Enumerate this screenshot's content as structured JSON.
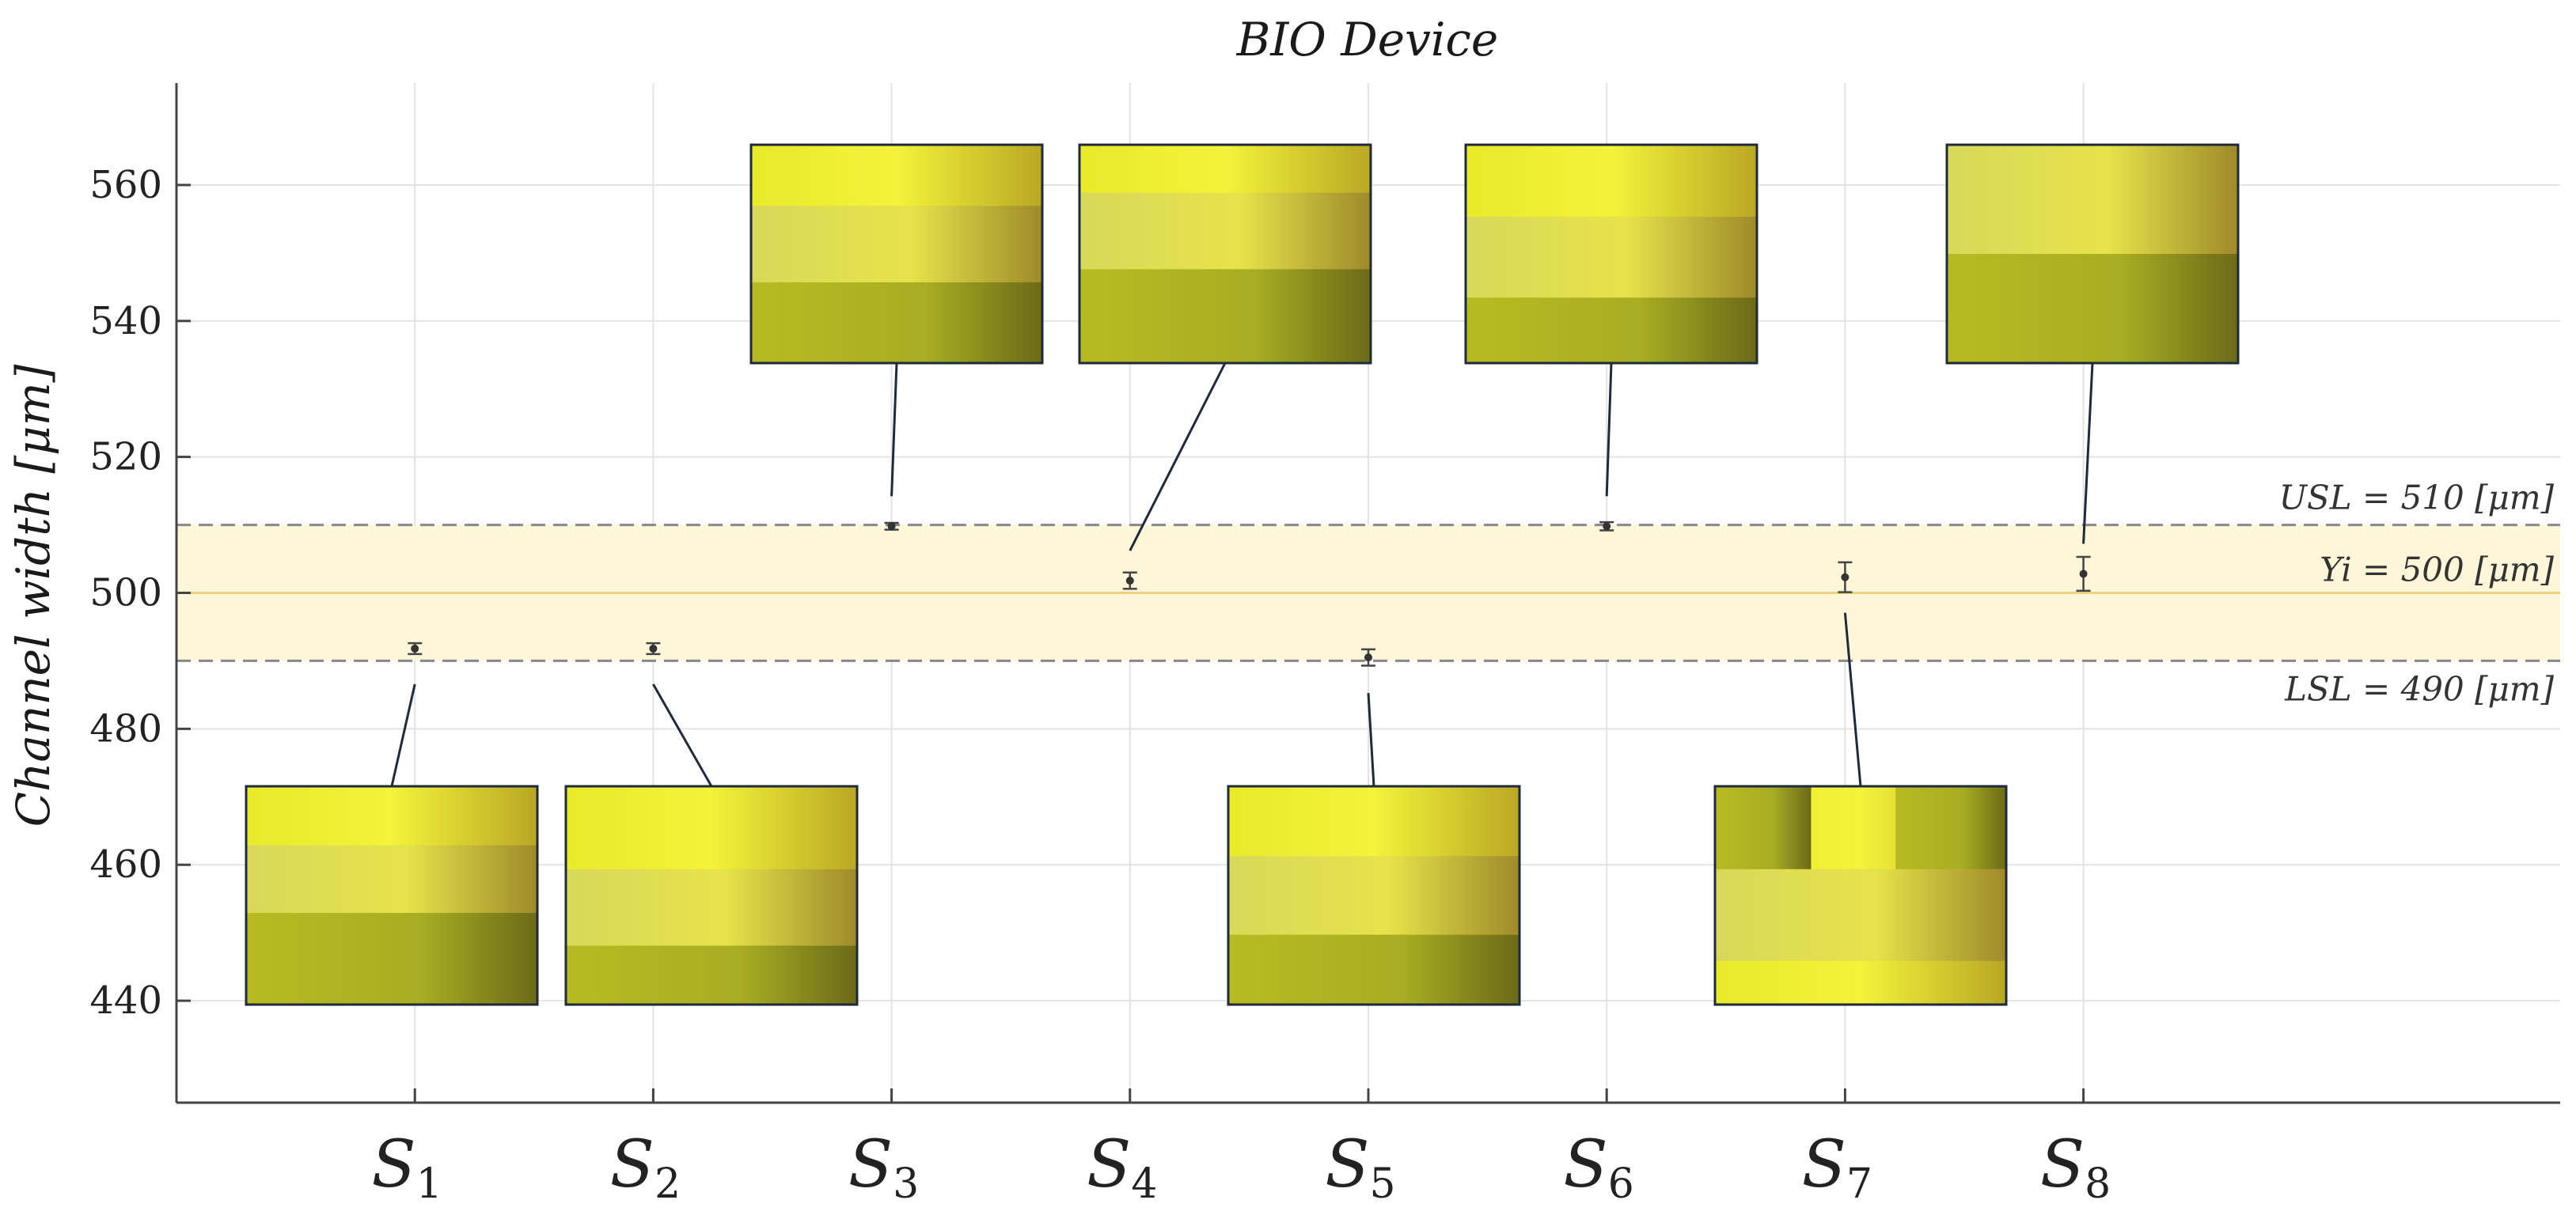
{
  "chart_data": {
    "type": "scatter",
    "title": "BIO Device",
    "ylabel": "Channel width [μm]",
    "xlabel": "",
    "ylim": [
      425,
      575
    ],
    "xlim": [
      0.0,
      10.0
    ],
    "yticks": [
      440,
      460,
      480,
      500,
      520,
      540,
      560
    ],
    "grid": true,
    "categories": [
      {
        "base": "S",
        "sub": "1"
      },
      {
        "base": "S",
        "sub": "2"
      },
      {
        "base": "S",
        "sub": "3"
      },
      {
        "base": "S",
        "sub": "4"
      },
      {
        "base": "S",
        "sub": "5"
      },
      {
        "base": "S",
        "sub": "6"
      },
      {
        "base": "S",
        "sub": "7"
      },
      {
        "base": "S",
        "sub": "8"
      }
    ],
    "series": [
      {
        "values": [
          491.8,
          491.8,
          509.8,
          501.8,
          490.5,
          509.8,
          502.3,
          502.8
        ],
        "error_low": [
          0.8,
          0.8,
          0.5,
          1.2,
          1.2,
          0.6,
          2.2,
          2.5
        ],
        "error_high": [
          0.8,
          0.8,
          0.5,
          1.2,
          1.2,
          0.6,
          2.2,
          2.5
        ]
      }
    ],
    "reference_lines": [
      {
        "label": "USL = 510 [μm]",
        "value": 510,
        "style": "dashed",
        "color": "#888888"
      },
      {
        "label": "Yi = 500 [μm]",
        "value": 500,
        "style": "solid",
        "color": "#f0d27a"
      },
      {
        "label": "LSL = 490 [μm]",
        "value": 490,
        "style": "dashed",
        "color": "#888888"
      }
    ],
    "band": {
      "from": 490,
      "to": 510,
      "color": "#fdf6d8"
    },
    "annotations": "micrograph inset images of each channel linked to each point"
  }
}
